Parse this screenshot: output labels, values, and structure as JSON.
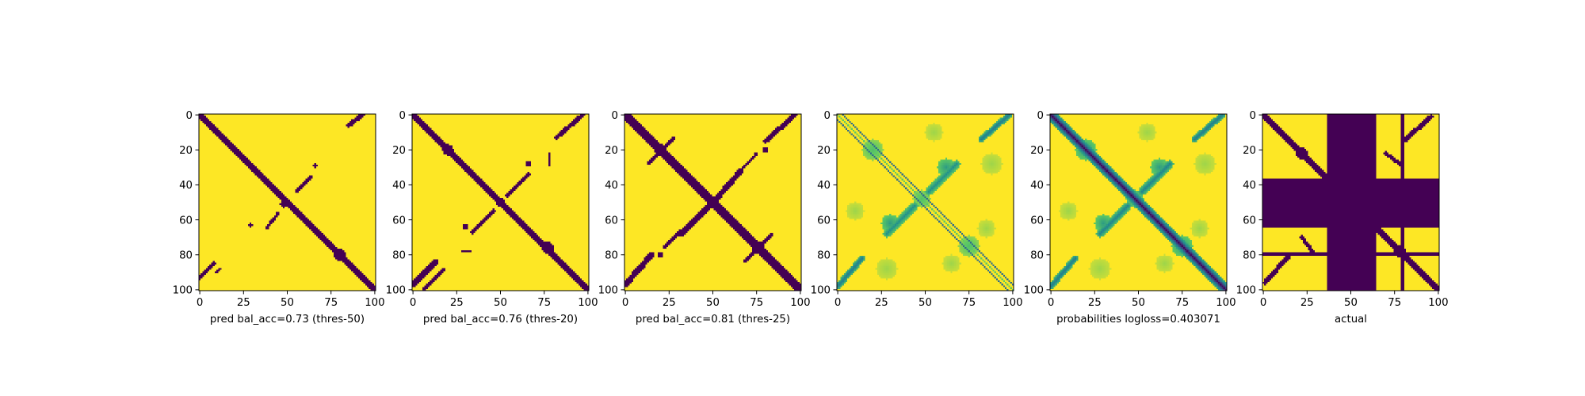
{
  "colors": {
    "low": "#440154",
    "high": "#fde725",
    "viridis": [
      "#440154",
      "#3b528b",
      "#21918c",
      "#5ec962",
      "#fde725"
    ],
    "axis": "#000000",
    "background": "#ffffff"
  },
  "chart_data": [
    {
      "type": "heatmap",
      "title": "",
      "xlabel": "pred bal_acc=0.73 (thres-50)",
      "ylabel": "",
      "xlim": [
        0,
        101
      ],
      "ylim": [
        101,
        0
      ],
      "xticks": [
        0,
        25,
        50,
        75,
        100
      ],
      "yticks": [
        0,
        20,
        40,
        60,
        80,
        100
      ],
      "colormap": "viridis",
      "value_range": [
        0,
        1
      ],
      "binary": true,
      "features": [
        {
          "kind": "diagonal",
          "offset": 0,
          "halfwidth": 1.6,
          "value": 0
        },
        {
          "kind": "blob",
          "cx": 19,
          "cy": 19,
          "r": 1.8,
          "value": 0
        },
        {
          "kind": "blob",
          "cx": 80,
          "cy": 80,
          "r": 3.2,
          "value": 0
        },
        {
          "kind": "blob",
          "cx": 48,
          "cy": 51,
          "r": 2.2,
          "value": 0
        },
        {
          "kind": "segment",
          "x1": 85,
          "y1": 6,
          "x2": 93,
          "y2": 0,
          "halfwidth": 1.2,
          "value": 0
        },
        {
          "kind": "segment",
          "x1": 0,
          "y1": 93,
          "x2": 8,
          "y2": 85,
          "halfwidth": 1.4,
          "value": 0
        },
        {
          "kind": "segment",
          "x1": 9,
          "y1": 90,
          "x2": 12,
          "y2": 88,
          "halfwidth": 0.6,
          "value": 0
        },
        {
          "kind": "segment",
          "x1": 55,
          "y1": 44,
          "x2": 64,
          "y2": 35,
          "halfwidth": 0.9,
          "value": 0
        },
        {
          "kind": "segment",
          "x1": 38,
          "y1": 65,
          "x2": 45,
          "y2": 56,
          "halfwidth": 0.9,
          "value": 0
        },
        {
          "kind": "blob",
          "cx": 66,
          "cy": 29,
          "r": 1.4,
          "value": 0
        },
        {
          "kind": "blob",
          "cx": 29,
          "cy": 63,
          "r": 1.2,
          "value": 0
        }
      ]
    },
    {
      "type": "heatmap",
      "title": "",
      "xlabel": "pred bal_acc=0.76 (thres-20)",
      "ylabel": "",
      "xlim": [
        0,
        101
      ],
      "ylim": [
        101,
        0
      ],
      "xticks": [
        0,
        25,
        50,
        75,
        100
      ],
      "yticks": [
        0,
        20,
        40,
        60,
        80,
        100
      ],
      "colormap": "viridis",
      "value_range": [
        0,
        1
      ],
      "binary": true,
      "features": [
        {
          "kind": "diagonal",
          "offset": 0,
          "halfwidth": 2.0,
          "value": 0
        },
        {
          "kind": "blob",
          "cx": 20,
          "cy": 20,
          "r": 3.0,
          "value": 0
        },
        {
          "kind": "blob",
          "cx": 77,
          "cy": 76,
          "r": 3.4,
          "value": 0
        },
        {
          "kind": "blob",
          "cx": 50,
          "cy": 50,
          "r": 2.4,
          "value": 0
        },
        {
          "kind": "segment",
          "x1": 82,
          "y1": 13,
          "x2": 97,
          "y2": 0,
          "halfwidth": 1.3,
          "value": 0
        },
        {
          "kind": "segment",
          "x1": 0,
          "y1": 97,
          "x2": 13,
          "y2": 84,
          "halfwidth": 1.6,
          "value": 0
        },
        {
          "kind": "segment",
          "x1": 6,
          "y1": 100,
          "x2": 18,
          "y2": 88,
          "halfwidth": 0.8,
          "value": 0
        },
        {
          "kind": "segment",
          "x1": 54,
          "y1": 46,
          "x2": 66,
          "y2": 34,
          "halfwidth": 1.0,
          "value": 0
        },
        {
          "kind": "segment",
          "x1": 34,
          "y1": 67,
          "x2": 46,
          "y2": 55,
          "halfwidth": 1.0,
          "value": 0
        },
        {
          "kind": "blob",
          "cx": 66,
          "cy": 28,
          "r": 1.6,
          "value": 0
        },
        {
          "kind": "blob",
          "cx": 30,
          "cy": 64,
          "r": 1.5,
          "value": 0
        },
        {
          "kind": "segment",
          "x1": 78,
          "y1": 22,
          "x2": 78,
          "y2": 29,
          "halfwidth": 0.5,
          "value": 0
        },
        {
          "kind": "segment",
          "x1": 28,
          "y1": 78,
          "x2": 33,
          "y2": 78,
          "halfwidth": 0.5,
          "value": 0
        }
      ]
    },
    {
      "type": "heatmap",
      "title": "",
      "xlabel": "pred bal_acc=0.81 (thres-25)",
      "ylabel": "",
      "xlim": [
        0,
        101
      ],
      "ylim": [
        101,
        0
      ],
      "xticks": [
        0,
        25,
        50,
        75,
        100
      ],
      "yticks": [
        0,
        20,
        40,
        60,
        80,
        100
      ],
      "colormap": "viridis",
      "value_range": [
        0,
        1
      ],
      "binary": true,
      "features": [
        {
          "kind": "diagonal",
          "offset": 0,
          "halfwidth": 2.3,
          "value": 0
        },
        {
          "kind": "blob",
          "cx": 20,
          "cy": 20,
          "r": 3.6,
          "value": 0
        },
        {
          "kind": "blob",
          "cx": 76,
          "cy": 76,
          "r": 3.6,
          "value": 0
        },
        {
          "kind": "blob",
          "cx": 50,
          "cy": 50,
          "r": 3.0,
          "value": 0
        },
        {
          "kind": "segment",
          "x1": 13,
          "y1": 28,
          "x2": 28,
          "y2": 13,
          "halfwidth": 0.9,
          "value": 0
        },
        {
          "kind": "segment",
          "x1": 68,
          "y1": 84,
          "x2": 84,
          "y2": 68,
          "halfwidth": 0.9,
          "value": 0
        },
        {
          "kind": "segment",
          "x1": 80,
          "y1": 15,
          "x2": 97,
          "y2": 0,
          "halfwidth": 1.4,
          "value": 0
        },
        {
          "kind": "segment",
          "x1": 0,
          "y1": 97,
          "x2": 15,
          "y2": 80,
          "halfwidth": 1.7,
          "value": 0
        },
        {
          "kind": "segment",
          "x1": 52,
          "y1": 48,
          "x2": 66,
          "y2": 32,
          "halfwidth": 1.6,
          "value": 0
        },
        {
          "kind": "segment",
          "x1": 32,
          "y1": 68,
          "x2": 48,
          "y2": 52,
          "halfwidth": 1.6,
          "value": 0
        },
        {
          "kind": "segment",
          "x1": 66,
          "y1": 32,
          "x2": 75,
          "y2": 22,
          "halfwidth": 0.8,
          "value": 0
        },
        {
          "kind": "segment",
          "x1": 22,
          "y1": 76,
          "x2": 32,
          "y2": 66,
          "halfwidth": 0.8,
          "value": 0
        },
        {
          "kind": "blob",
          "cx": 20,
          "cy": 80,
          "r": 1.8,
          "value": 0
        },
        {
          "kind": "blob",
          "cx": 80,
          "cy": 20,
          "r": 1.6,
          "value": 0
        }
      ]
    },
    {
      "type": "heatmap",
      "title": "",
      "xlabel": "",
      "ylabel": "",
      "xlim": [
        0,
        101
      ],
      "ylim": [
        101,
        0
      ],
      "xticks": [
        0,
        25,
        50,
        75,
        100
      ],
      "yticks": [
        0,
        20,
        40,
        60,
        80,
        100
      ],
      "colormap": "viridis",
      "value_range": [
        0,
        1
      ],
      "binary": false,
      "features": [
        {
          "kind": "diagonal",
          "offset": 3,
          "halfwidth": 0.6,
          "value": 0.35
        },
        {
          "kind": "diagonal",
          "offset": -3,
          "halfwidth": 0.6,
          "value": 0.35
        },
        {
          "kind": "diagonal",
          "offset": 0,
          "halfwidth": 0.5,
          "value": 0.75
        },
        {
          "kind": "blob",
          "cx": 20,
          "cy": 20,
          "r": 6,
          "value": 0.7
        },
        {
          "kind": "blob",
          "cx": 75,
          "cy": 75,
          "r": 6,
          "value": 0.7
        },
        {
          "kind": "blob",
          "cx": 48,
          "cy": 48,
          "r": 5,
          "value": 0.7
        },
        {
          "kind": "blob",
          "cx": 62,
          "cy": 30,
          "r": 5,
          "value": 0.55
        },
        {
          "kind": "blob",
          "cx": 30,
          "cy": 62,
          "r": 5,
          "value": 0.55
        },
        {
          "kind": "segment",
          "x1": 52,
          "y1": 44,
          "x2": 68,
          "y2": 28,
          "halfwidth": 2.2,
          "value": 0.5
        },
        {
          "kind": "segment",
          "x1": 28,
          "y1": 68,
          "x2": 44,
          "y2": 52,
          "halfwidth": 2.2,
          "value": 0.5
        },
        {
          "kind": "segment",
          "x1": 82,
          "y1": 14,
          "x2": 98,
          "y2": 0,
          "halfwidth": 1.8,
          "value": 0.4
        },
        {
          "kind": "segment",
          "x1": 0,
          "y1": 98,
          "x2": 14,
          "y2": 82,
          "halfwidth": 1.8,
          "value": 0.4
        },
        {
          "kind": "blob",
          "cx": 88,
          "cy": 28,
          "r": 6,
          "value": 0.85
        },
        {
          "kind": "blob",
          "cx": 28,
          "cy": 88,
          "r": 6,
          "value": 0.85
        },
        {
          "kind": "blob",
          "cx": 10,
          "cy": 55,
          "r": 5,
          "value": 0.85
        },
        {
          "kind": "blob",
          "cx": 55,
          "cy": 10,
          "r": 5,
          "value": 0.85
        },
        {
          "kind": "blob",
          "cx": 65,
          "cy": 85,
          "r": 5,
          "value": 0.85
        },
        {
          "kind": "blob",
          "cx": 85,
          "cy": 65,
          "r": 5,
          "value": 0.85
        }
      ]
    },
    {
      "type": "heatmap",
      "title": "",
      "xlabel": "probabilities logloss=0.403071",
      "ylabel": "",
      "xlim": [
        0,
        101
      ],
      "ylim": [
        101,
        0
      ],
      "xticks": [
        0,
        25,
        50,
        75,
        100
      ],
      "yticks": [
        0,
        20,
        40,
        60,
        80,
        100
      ],
      "colormap": "viridis",
      "value_range": [
        0,
        1
      ],
      "binary": false,
      "features": [
        {
          "kind": "diagonal",
          "offset": 0,
          "halfwidth": 2.0,
          "value": 0.02
        },
        {
          "kind": "diagonal",
          "offset": 0,
          "halfwidth": 3.4,
          "value": 0.3
        },
        {
          "kind": "blob",
          "cx": 20,
          "cy": 20,
          "r": 6,
          "value": 0.55
        },
        {
          "kind": "blob",
          "cx": 75,
          "cy": 75,
          "r": 6,
          "value": 0.55
        },
        {
          "kind": "blob",
          "cx": 48,
          "cy": 48,
          "r": 5,
          "value": 0.55
        },
        {
          "kind": "blob",
          "cx": 62,
          "cy": 30,
          "r": 5,
          "value": 0.55
        },
        {
          "kind": "blob",
          "cx": 30,
          "cy": 62,
          "r": 5,
          "value": 0.55
        },
        {
          "kind": "segment",
          "x1": 52,
          "y1": 44,
          "x2": 68,
          "y2": 28,
          "halfwidth": 2.2,
          "value": 0.45
        },
        {
          "kind": "segment",
          "x1": 28,
          "y1": 68,
          "x2": 44,
          "y2": 52,
          "halfwidth": 2.2,
          "value": 0.45
        },
        {
          "kind": "segment",
          "x1": 82,
          "y1": 14,
          "x2": 98,
          "y2": 0,
          "halfwidth": 1.8,
          "value": 0.4
        },
        {
          "kind": "segment",
          "x1": 0,
          "y1": 98,
          "x2": 14,
          "y2": 82,
          "halfwidth": 1.8,
          "value": 0.4
        },
        {
          "kind": "blob",
          "cx": 88,
          "cy": 28,
          "r": 6,
          "value": 0.85
        },
        {
          "kind": "blob",
          "cx": 28,
          "cy": 88,
          "r": 6,
          "value": 0.85
        },
        {
          "kind": "blob",
          "cx": 10,
          "cy": 55,
          "r": 5,
          "value": 0.85
        },
        {
          "kind": "blob",
          "cx": 55,
          "cy": 10,
          "r": 5,
          "value": 0.85
        },
        {
          "kind": "blob",
          "cx": 65,
          "cy": 85,
          "r": 5,
          "value": 0.85
        },
        {
          "kind": "blob",
          "cx": 85,
          "cy": 65,
          "r": 5,
          "value": 0.85
        }
      ]
    },
    {
      "type": "heatmap",
      "title": "",
      "xlabel": "actual",
      "ylabel": "",
      "xlim": [
        0,
        101
      ],
      "ylim": [
        101,
        0
      ],
      "xticks": [
        0,
        25,
        50,
        75,
        100
      ],
      "yticks": [
        0,
        20,
        40,
        60,
        80,
        100
      ],
      "colormap": "viridis",
      "value_range": [
        0,
        1
      ],
      "binary": true,
      "features": [
        {
          "kind": "diagonal",
          "offset": 0,
          "halfwidth": 2.0,
          "value": 0
        },
        {
          "kind": "blob",
          "cx": 22,
          "cy": 22,
          "r": 3.6,
          "value": 0
        },
        {
          "kind": "blob",
          "cx": 78,
          "cy": 78,
          "r": 3.6,
          "value": 0
        },
        {
          "kind": "segment",
          "x1": 80,
          "y1": 15,
          "x2": 96,
          "y2": 1,
          "halfwidth": 1.4,
          "value": 0
        },
        {
          "kind": "segment",
          "x1": 1,
          "y1": 96,
          "x2": 15,
          "y2": 80,
          "halfwidth": 1.4,
          "value": 0
        },
        {
          "kind": "segment",
          "x1": 70,
          "y1": 22,
          "x2": 78,
          "y2": 28,
          "halfwidth": 1.0,
          "value": 0
        },
        {
          "kind": "segment",
          "x1": 22,
          "y1": 70,
          "x2": 28,
          "y2": 78,
          "halfwidth": 1.0,
          "value": 0
        },
        {
          "kind": "band",
          "axis": "x",
          "from": 37,
          "to": 64,
          "value": 0
        },
        {
          "kind": "band",
          "axis": "y",
          "from": 37,
          "to": 64,
          "value": 0
        },
        {
          "kind": "band",
          "axis": "x",
          "from": 79,
          "to": 80,
          "value": 0
        },
        {
          "kind": "band",
          "axis": "y",
          "from": 79,
          "to": 80,
          "value": 0
        }
      ]
    }
  ]
}
